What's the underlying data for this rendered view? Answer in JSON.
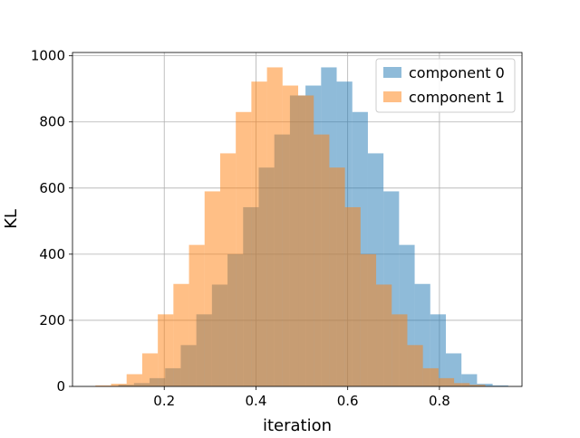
{
  "chart_data": {
    "type": "histogram",
    "title": "",
    "xlabel": "iteration",
    "ylabel": "KL",
    "xlim": [
      0.0,
      0.98
    ],
    "ylim": [
      0,
      1010
    ],
    "xticks": [
      0.2,
      0.4,
      0.6,
      0.8
    ],
    "yticks": [
      0,
      200,
      400,
      600,
      800,
      1000
    ],
    "grid": true,
    "legend_position": "top-right",
    "series": [
      {
        "name": "component 0",
        "color": "#1f77b4",
        "opacity": 0.5,
        "bins": [
          {
            "x0": 0.1,
            "x1": 0.134,
            "count": 5
          },
          {
            "x0": 0.134,
            "x1": 0.168,
            "count": 10
          },
          {
            "x0": 0.168,
            "x1": 0.202,
            "count": 25
          },
          {
            "x0": 0.202,
            "x1": 0.236,
            "count": 55
          },
          {
            "x0": 0.236,
            "x1": 0.27,
            "count": 125
          },
          {
            "x0": 0.27,
            "x1": 0.304,
            "count": 218
          },
          {
            "x0": 0.304,
            "x1": 0.338,
            "count": 308
          },
          {
            "x0": 0.338,
            "x1": 0.372,
            "count": 400
          },
          {
            "x0": 0.372,
            "x1": 0.406,
            "count": 542
          },
          {
            "x0": 0.406,
            "x1": 0.44,
            "count": 662
          },
          {
            "x0": 0.44,
            "x1": 0.474,
            "count": 762
          },
          {
            "x0": 0.474,
            "x1": 0.508,
            "count": 880
          },
          {
            "x0": 0.508,
            "x1": 0.542,
            "count": 910
          },
          {
            "x0": 0.542,
            "x1": 0.576,
            "count": 965
          },
          {
            "x0": 0.576,
            "x1": 0.61,
            "count": 922
          },
          {
            "x0": 0.61,
            "x1": 0.644,
            "count": 830
          },
          {
            "x0": 0.644,
            "x1": 0.678,
            "count": 705
          },
          {
            "x0": 0.678,
            "x1": 0.712,
            "count": 590
          },
          {
            "x0": 0.712,
            "x1": 0.746,
            "count": 428
          },
          {
            "x0": 0.746,
            "x1": 0.78,
            "count": 310
          },
          {
            "x0": 0.78,
            "x1": 0.814,
            "count": 218
          },
          {
            "x0": 0.814,
            "x1": 0.848,
            "count": 100
          },
          {
            "x0": 0.848,
            "x1": 0.882,
            "count": 37
          },
          {
            "x0": 0.882,
            "x1": 0.916,
            "count": 8
          },
          {
            "x0": 0.916,
            "x1": 0.95,
            "count": 3
          }
        ]
      },
      {
        "name": "component 1",
        "color": "#ff7f0e",
        "opacity": 0.5,
        "bins": [
          {
            "x0": 0.05,
            "x1": 0.084,
            "count": 3
          },
          {
            "x0": 0.084,
            "x1": 0.118,
            "count": 8
          },
          {
            "x0": 0.118,
            "x1": 0.152,
            "count": 37
          },
          {
            "x0": 0.152,
            "x1": 0.186,
            "count": 100
          },
          {
            "x0": 0.186,
            "x1": 0.22,
            "count": 218
          },
          {
            "x0": 0.22,
            "x1": 0.254,
            "count": 310
          },
          {
            "x0": 0.254,
            "x1": 0.288,
            "count": 428
          },
          {
            "x0": 0.288,
            "x1": 0.322,
            "count": 590
          },
          {
            "x0": 0.322,
            "x1": 0.356,
            "count": 705
          },
          {
            "x0": 0.356,
            "x1": 0.39,
            "count": 830
          },
          {
            "x0": 0.39,
            "x1": 0.424,
            "count": 922
          },
          {
            "x0": 0.424,
            "x1": 0.458,
            "count": 965
          },
          {
            "x0": 0.458,
            "x1": 0.492,
            "count": 910
          },
          {
            "x0": 0.492,
            "x1": 0.526,
            "count": 880
          },
          {
            "x0": 0.526,
            "x1": 0.56,
            "count": 762
          },
          {
            "x0": 0.56,
            "x1": 0.594,
            "count": 662
          },
          {
            "x0": 0.594,
            "x1": 0.628,
            "count": 542
          },
          {
            "x0": 0.628,
            "x1": 0.662,
            "count": 400
          },
          {
            "x0": 0.662,
            "x1": 0.696,
            "count": 308
          },
          {
            "x0": 0.696,
            "x1": 0.73,
            "count": 218
          },
          {
            "x0": 0.73,
            "x1": 0.764,
            "count": 125
          },
          {
            "x0": 0.764,
            "x1": 0.798,
            "count": 55
          },
          {
            "x0": 0.798,
            "x1": 0.832,
            "count": 25
          },
          {
            "x0": 0.832,
            "x1": 0.866,
            "count": 10
          },
          {
            "x0": 0.866,
            "x1": 0.9,
            "count": 5
          }
        ]
      }
    ]
  }
}
